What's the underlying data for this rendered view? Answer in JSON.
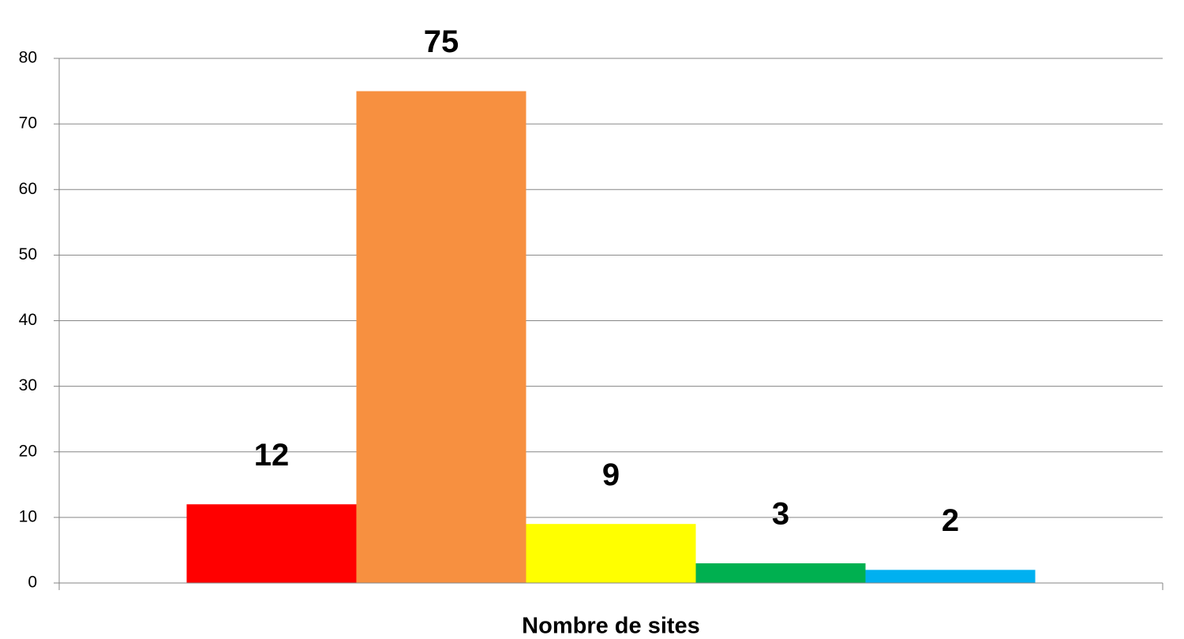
{
  "chart_data": {
    "type": "bar",
    "categories": [
      "Nombre de sites"
    ],
    "series": [
      {
        "color": "#ff0000",
        "values": [
          12
        ]
      },
      {
        "color": "#f79040",
        "values": [
          75
        ]
      },
      {
        "color": "#ffff00",
        "values": [
          9
        ]
      },
      {
        "color": "#00b050",
        "values": [
          3
        ]
      },
      {
        "color": "#00b0f0",
        "values": [
          2
        ]
      }
    ],
    "ylim": [
      0,
      80
    ],
    "yticks": [
      0,
      10,
      20,
      30,
      40,
      50,
      60,
      70,
      80
    ],
    "grid": true
  }
}
